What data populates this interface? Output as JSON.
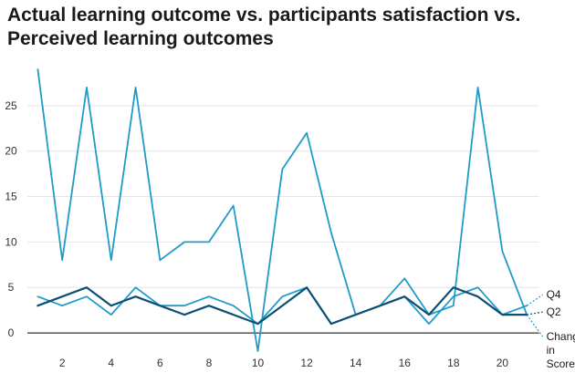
{
  "title": "Actual learning outcome vs. participants satisfaction vs. Perceived learning outcomes",
  "chart_data": {
    "type": "line",
    "title": "Actual learning outcome vs. participants satisfaction vs. Perceived learning outcomes",
    "xlabel": "",
    "ylabel": "",
    "x": [
      1,
      2,
      3,
      4,
      5,
      6,
      7,
      8,
      9,
      10,
      11,
      12,
      13,
      14,
      15,
      16,
      17,
      18,
      19,
      20,
      21
    ],
    "x_ticks": [
      2,
      4,
      6,
      8,
      10,
      12,
      14,
      16,
      18,
      20
    ],
    "y_ticks": [
      0,
      5,
      10,
      15,
      20,
      25
    ],
    "xlim": [
      0.5,
      22
    ],
    "ylim": [
      -2.5,
      30
    ],
    "grid": true,
    "legend": "none",
    "series": [
      {
        "name": "Change in Score",
        "color": "#1f9bc7",
        "width": 1.8,
        "values": [
          29,
          8,
          27,
          8,
          27,
          8,
          10,
          10,
          14,
          -2,
          18,
          22,
          11,
          2,
          3,
          6,
          2,
          3,
          27,
          9,
          2
        ]
      },
      {
        "name": "Q4",
        "color": "#1f9bc7",
        "width": 1.8,
        "values": [
          4,
          3,
          4,
          2,
          5,
          3,
          3,
          4,
          3,
          1,
          4,
          5,
          1,
          2,
          3,
          4,
          1,
          4,
          5,
          2,
          3
        ]
      },
      {
        "name": "Q2",
        "color": "#0b4f74",
        "width": 2.2,
        "values": [
          3,
          4,
          5,
          3,
          4,
          3,
          2,
          3,
          2,
          1,
          3,
          5,
          1,
          2,
          3,
          4,
          2,
          5,
          4,
          2,
          2
        ]
      }
    ]
  }
}
